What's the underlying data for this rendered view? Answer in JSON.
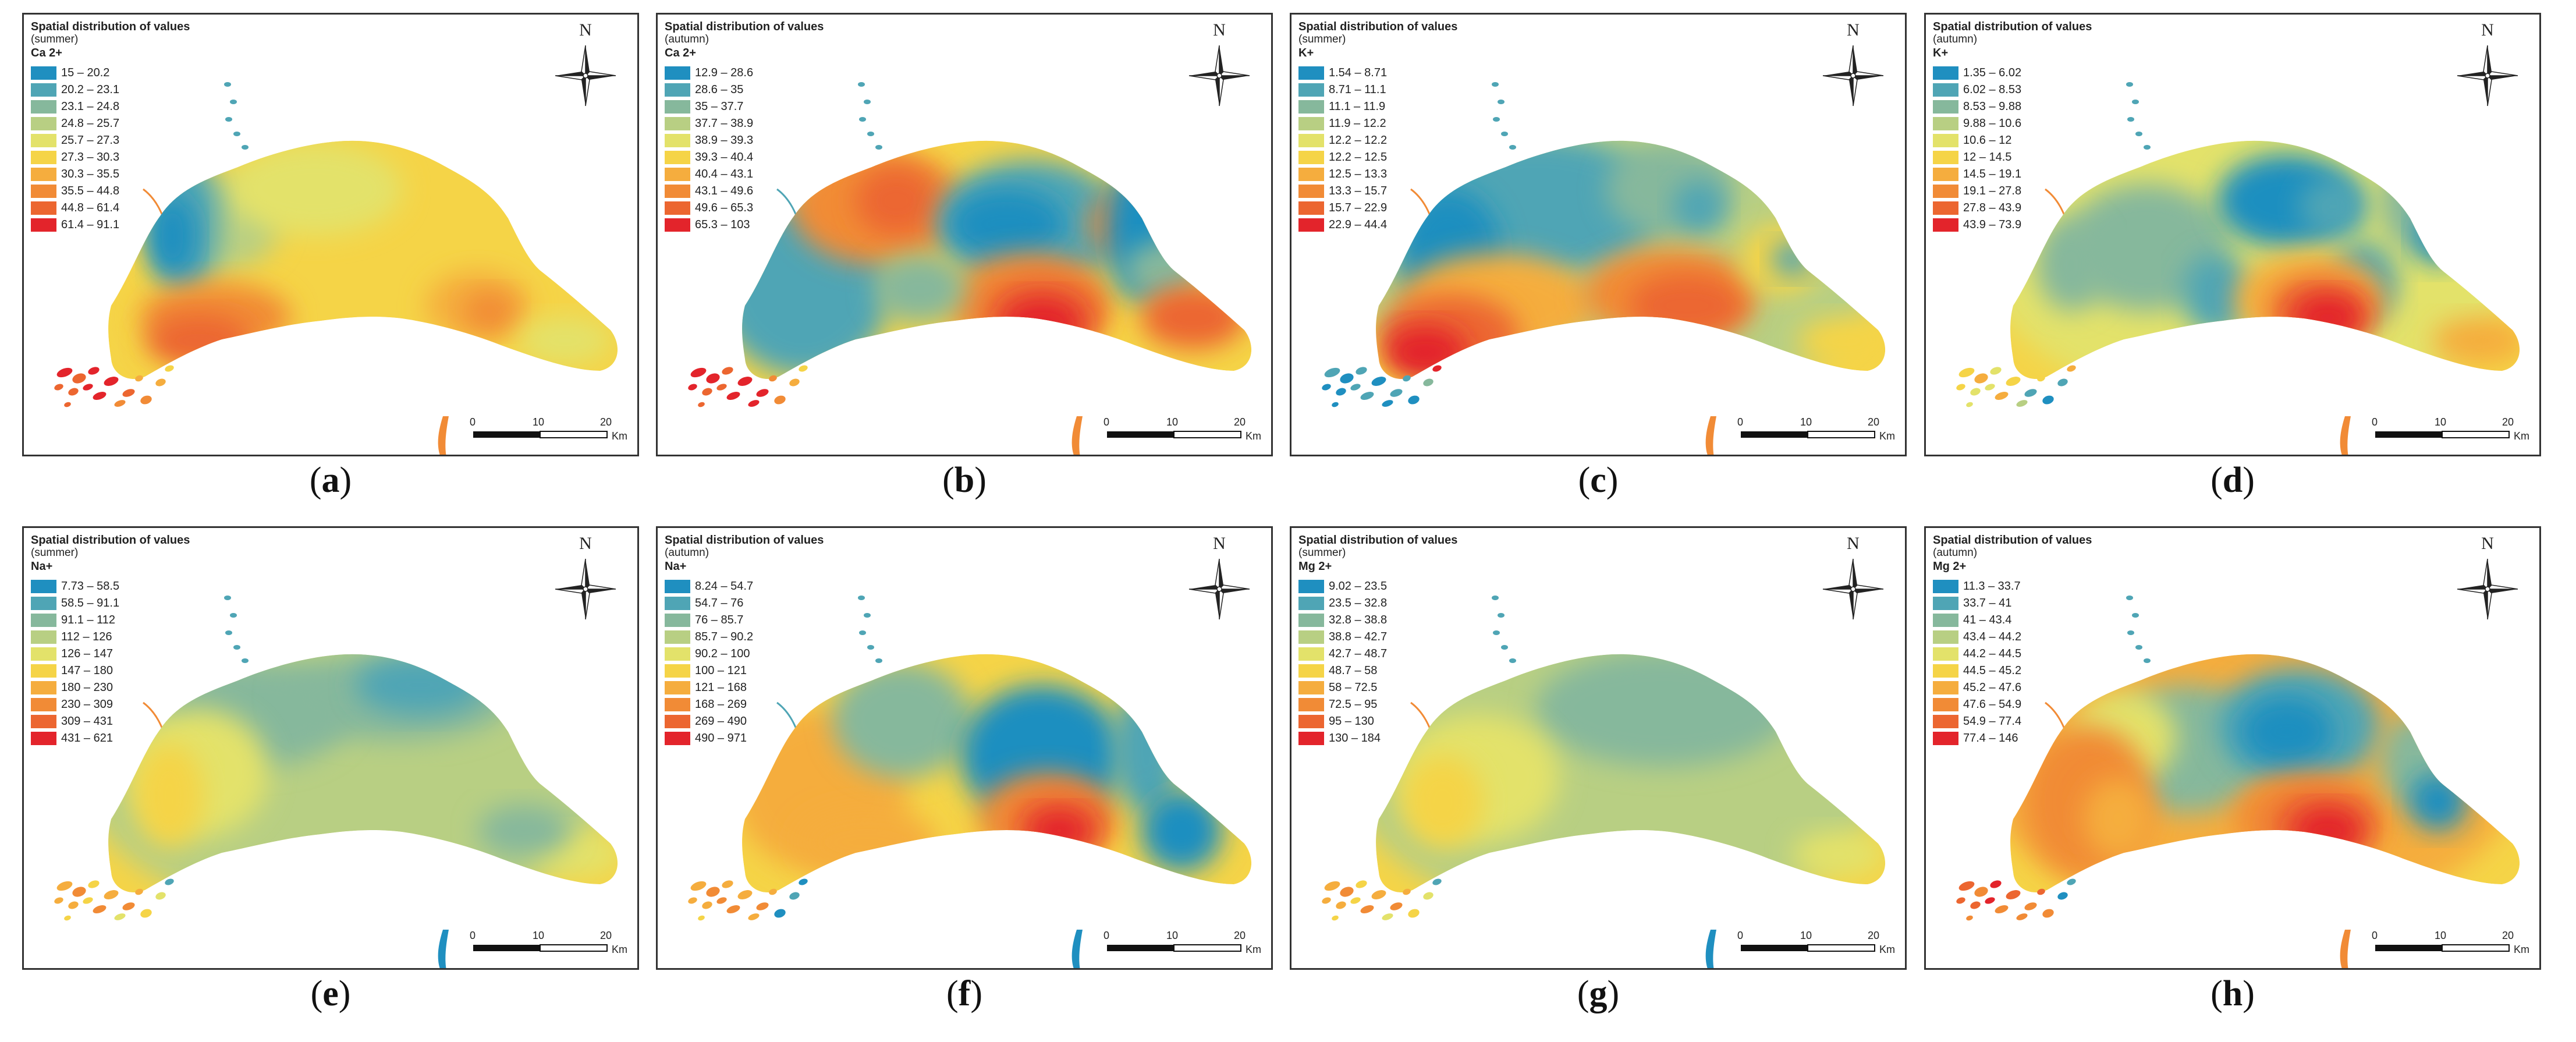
{
  "legend_title": "Spatial distribution of values",
  "north_label": "N",
  "scale": {
    "ticks": [
      "0",
      "10",
      "20"
    ],
    "unit": "Km"
  },
  "colors": {
    "c0": "#1f8fc0",
    "c1": "#4fa5b5",
    "c2": "#86b89c",
    "c3": "#b8cf83",
    "c4": "#e3e26a",
    "c5": "#f5d447",
    "c6": "#f5ad3e",
    "c7": "#f18b36",
    "c8": "#ec6630",
    "c9": "#e3242b"
  },
  "panels": [
    {
      "caption_letter": "a",
      "season": "(summer)",
      "ion": "Ca 2+",
      "classes": [
        "15 – 20.2",
        "20.2 – 23.1",
        "23.1 – 24.8",
        "24.8 – 25.7",
        "25.7 – 27.3",
        "27.3 – 30.3",
        "30.3 – 35.5",
        "35.5 – 44.8",
        "44.8 – 61.4",
        "61.4 – 91.1"
      ]
    },
    {
      "caption_letter": "b",
      "season": "(autumn)",
      "ion": "Ca 2+",
      "classes": [
        "12.9 – 28.6",
        "28.6 – 35",
        "35 – 37.7",
        "37.7 – 38.9",
        "38.9 – 39.3",
        "39.3 – 40.4",
        "40.4 – 43.1",
        "43.1 – 49.6",
        "49.6 – 65.3",
        "65.3 – 103"
      ]
    },
    {
      "caption_letter": "c",
      "season": "(summer)",
      "ion": "K+",
      "classes": [
        "1.54 – 8.71",
        "8.71 – 11.1",
        "11.1 – 11.9",
        "11.9 – 12.2",
        "12.2 – 12.2",
        "12.2 – 12.5",
        "12.5 – 13.3",
        "13.3 – 15.7",
        "15.7 – 22.9",
        "22.9 – 44.4"
      ]
    },
    {
      "caption_letter": "d",
      "season": "(autumn)",
      "ion": "K+",
      "classes": [
        "1.35 – 6.02",
        "6.02 – 8.53",
        "8.53 – 9.88",
        "9.88 – 10.6",
        "10.6 – 12",
        "12 – 14.5",
        "14.5 – 19.1",
        "19.1 – 27.8",
        "27.8 – 43.9",
        "43.9 – 73.9"
      ]
    },
    {
      "caption_letter": "e",
      "season": "(summer)",
      "ion": "Na+",
      "classes": [
        "7.73 – 58.5",
        "58.5 – 91.1",
        "91.1 – 112",
        "112 – 126",
        "126 – 147",
        "147 – 180",
        "180 – 230",
        "230 – 309",
        "309 – 431",
        "431 – 621"
      ]
    },
    {
      "caption_letter": "f",
      "season": "(autumn)",
      "ion": "Na+",
      "classes": [
        "8.24 – 54.7",
        "54.7 – 76",
        "76 – 85.7",
        "85.7 – 90.2",
        "90.2 – 100",
        "100 – 121",
        "121 – 168",
        "168 – 269",
        "269 – 490",
        "490 – 971"
      ]
    },
    {
      "caption_letter": "g",
      "season": "(summer)",
      "ion": "Mg 2+",
      "classes": [
        "9.02 – 23.5",
        "23.5 – 32.8",
        "32.8 – 38.8",
        "38.8 – 42.7",
        "42.7 – 48.7",
        "48.7 – 58",
        "58 – 72.5",
        "72.5 – 95",
        "95 – 130",
        "130 – 184"
      ]
    },
    {
      "caption_letter": "h",
      "season": "(autumn)",
      "ion": "Mg 2+",
      "classes": [
        "11.3 – 33.7",
        "33.7 – 41",
        "41 – 43.4",
        "43.4 – 44.2",
        "44.2 – 44.5",
        "44.5 – 45.2",
        "45.2 – 47.6",
        "47.6 – 54.9",
        "54.9 – 77.4",
        "77.4 – 146"
      ]
    }
  ]
}
